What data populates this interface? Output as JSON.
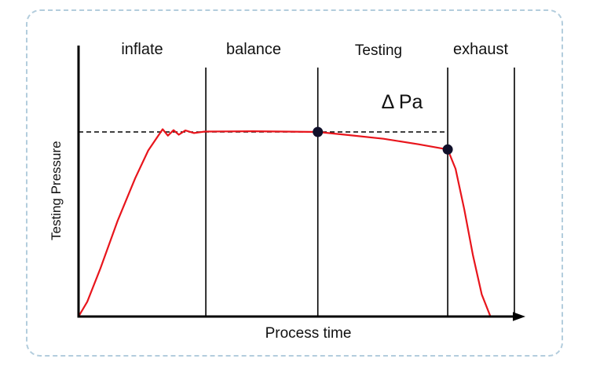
{
  "figure": {
    "border_color": "#b3cddd",
    "curve_color": "#e8151c",
    "marker_color": "#10102a",
    "axis_color": "#000000"
  },
  "chart_data": {
    "type": "line",
    "title": "",
    "xlabel": "Process time",
    "ylabel": "Testing Pressure",
    "annotation": "Δ Pa",
    "legend": "none",
    "grid": false,
    "phases": [
      {
        "label": "inflate",
        "x_end": 29.2
      },
      {
        "label": "balance",
        "x_end": 54.9
      },
      {
        "label": "Testing",
        "x_end": 84.7
      },
      {
        "label": "exhaust",
        "x_end": 100
      }
    ],
    "axis_ranges": {
      "x": [
        0,
        100
      ],
      "y": [
        0,
        115
      ]
    },
    "reference_line": {
      "y": 100,
      "x_start": 0,
      "x_end": 84.7,
      "style": "dashed"
    },
    "series": [
      {
        "name": "testing-pressure-curve",
        "x": [
          0,
          2,
          5,
          9,
          13,
          16,
          18,
          19.3,
          20.5,
          21.8,
          23,
          24.5,
          26.5,
          29,
          34,
          40,
          47,
          54.9,
          62,
          70,
          78,
          84.7,
          86.5,
          88.5,
          90.5,
          92.5,
          94.5
        ],
        "y": [
          0,
          8,
          26,
          52,
          75,
          90,
          97,
          101.5,
          98,
          101,
          98.5,
          100.8,
          99.4,
          100.2,
          100.3,
          100.4,
          100.2,
          100,
          98.3,
          96.3,
          93.3,
          90.5,
          80,
          58,
          33,
          12,
          0
        ]
      }
    ],
    "markers": [
      {
        "x": 54.9,
        "y": 100
      },
      {
        "x": 84.7,
        "y": 90.5
      }
    ]
  }
}
